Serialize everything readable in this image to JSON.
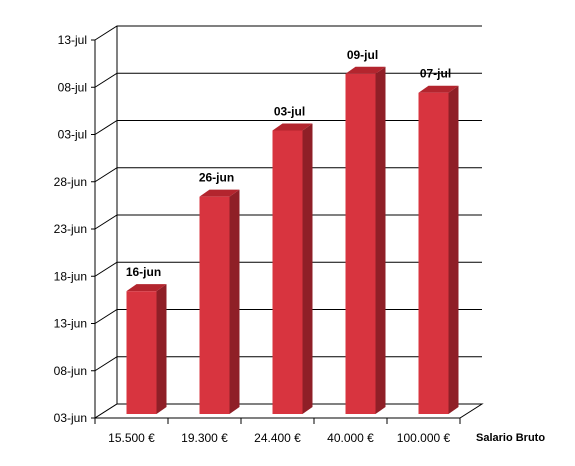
{
  "chart_data": {
    "type": "bar",
    "style": "3d-column",
    "categories": [
      "15.500 €",
      "19.300 €",
      "24.400 €",
      "40.000 €",
      "100.000 €"
    ],
    "values_day_offset": [
      13,
      23,
      30,
      36,
      34
    ],
    "data_labels": [
      "16-jun",
      "26-jun",
      "03-jul",
      "09-jul",
      "07-jul"
    ],
    "y_ticks": [
      "03-jun",
      "08-jun",
      "13-jun",
      "18-jun",
      "23-jun",
      "28-jun",
      "03-jul",
      "08-jul",
      "13-jul"
    ],
    "ylim_day_offset": [
      0,
      40
    ],
    "xlabel": "Salario Bruto",
    "ylabel": "",
    "title": "",
    "grid": true,
    "legend": "none",
    "colors": {
      "bar_front": "#d8343f",
      "bar_side": "#8f1f27",
      "bar_top": "#b3252e",
      "grid": "#000000"
    }
  }
}
